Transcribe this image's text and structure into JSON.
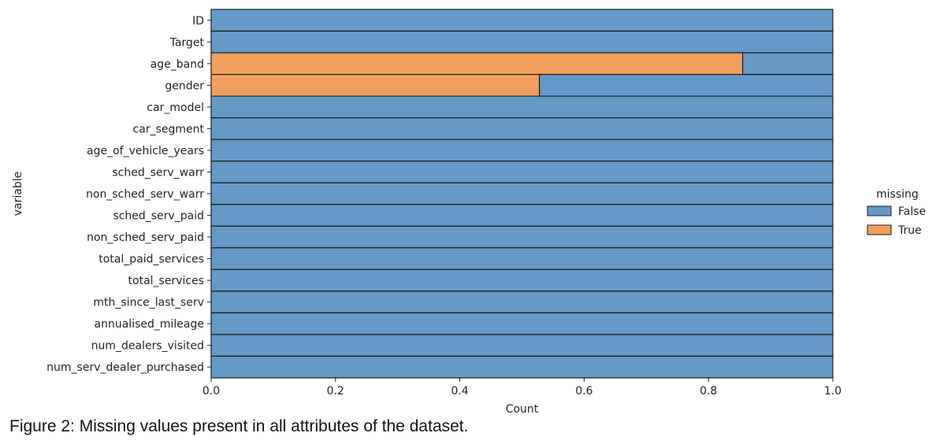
{
  "chart_data": {
    "type": "bar",
    "orientation": "horizontal",
    "stacked": true,
    "xlabel": "Count",
    "ylabel": "variable",
    "xlim": [
      0,
      1.0
    ],
    "xticks": [
      "0.0",
      "0.2",
      "0.4",
      "0.6",
      "0.8",
      "1.0"
    ],
    "legend": {
      "title": "missing",
      "position": "right",
      "entries": [
        "False",
        "True"
      ]
    },
    "categories": [
      "ID",
      "Target",
      "age_band",
      "gender",
      "car_model",
      "car_segment",
      "age_of_vehicle_years",
      "sched_serv_warr",
      "non_sched_serv_warr",
      "sched_serv_paid",
      "non_sched_serv_paid",
      "total_paid_services",
      "total_services",
      "mth_since_last_serv",
      "annualised_mileage",
      "num_dealers_visited",
      "num_serv_dealer_purchased"
    ],
    "series": [
      {
        "name": "True",
        "values": [
          0,
          0,
          0.855,
          0.528,
          0,
          0,
          0,
          0,
          0,
          0,
          0,
          0,
          0,
          0,
          0,
          0,
          0
        ]
      },
      {
        "name": "False",
        "values": [
          1.0,
          1.0,
          0.145,
          0.472,
          1.0,
          1.0,
          1.0,
          1.0,
          1.0,
          1.0,
          1.0,
          1.0,
          1.0,
          1.0,
          1.0,
          1.0,
          1.0
        ]
      }
    ],
    "colors": {
      "False": "#6599c8",
      "True": "#f0a05c",
      "edge": "#1a1a1a"
    }
  },
  "caption": "Figure 2: Missing values present in all attributes of the dataset."
}
